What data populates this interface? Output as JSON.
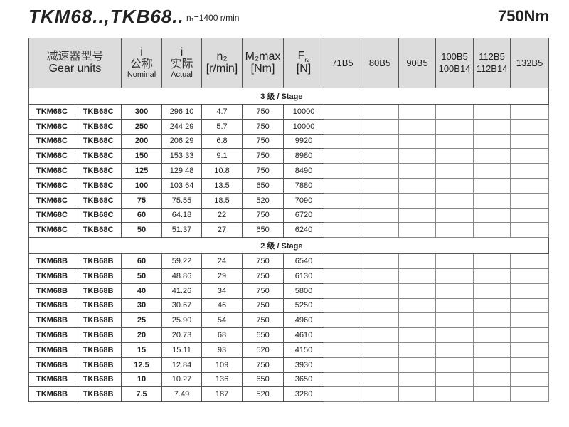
{
  "title": "TKM68..,TKB68..",
  "input_speed": "n₁=1400 r/min",
  "torque": "750Nm",
  "headers": {
    "gear_units_cn": "减速器型号",
    "gear_units_en": "Gear units",
    "nominal_i": "i",
    "nominal_cn": "公称",
    "nominal_en": "Nominal",
    "actual_i": "i",
    "actual_cn": "实际",
    "actual_en": "Actual",
    "n2": "n₂",
    "n2_unit": "[r/min]",
    "m2": "M₂max",
    "m2_unit": "[Nm]",
    "fr2": "F",
    "fr2_sub": "r2",
    "fr2_unit": "[N]",
    "motors": [
      "71B5",
      "80B5",
      "90B5",
      "100B5",
      "112B5",
      "132B5"
    ],
    "motors_line2": [
      "",
      "",
      "",
      "100B14",
      "112B14",
      ""
    ]
  },
  "sections": [
    {
      "label": "3 级 / Stage",
      "rows": [
        [
          "TKM68C",
          "TKB68C",
          "300",
          "296.10",
          "4.7",
          "750",
          "10000"
        ],
        [
          "TKM68C",
          "TKB68C",
          "250",
          "244.29",
          "5.7",
          "750",
          "10000"
        ],
        [
          "TKM68C",
          "TKB68C",
          "200",
          "206.29",
          "6.8",
          "750",
          "9920"
        ],
        [
          "TKM68C",
          "TKB68C",
          "150",
          "153.33",
          "9.1",
          "750",
          "8980"
        ],
        [
          "TKM68C",
          "TKB68C",
          "125",
          "129.48",
          "10.8",
          "750",
          "8490"
        ],
        [
          "TKM68C",
          "TKB68C",
          "100",
          "103.64",
          "13.5",
          "650",
          "7880"
        ],
        [
          "TKM68C",
          "TKB68C",
          "75",
          "75.55",
          "18.5",
          "520",
          "7090"
        ],
        [
          "TKM68C",
          "TKB68C",
          "60",
          "64.18",
          "22",
          "750",
          "6720"
        ],
        [
          "TKM68C",
          "TKB68C",
          "50",
          "51.37",
          "27",
          "650",
          "6240"
        ]
      ]
    },
    {
      "label": "2 级 / Stage",
      "rows": [
        [
          "TKM68B",
          "TKB68B",
          "60",
          "59.22",
          "24",
          "750",
          "6540"
        ],
        [
          "TKM68B",
          "TKB68B",
          "50",
          "48.86",
          "29",
          "750",
          "6130"
        ],
        [
          "TKM68B",
          "TKB68B",
          "40",
          "41.26",
          "34",
          "750",
          "5800"
        ],
        [
          "TKM68B",
          "TKB68B",
          "30",
          "30.67",
          "46",
          "750",
          "5250"
        ],
        [
          "TKM68B",
          "TKB68B",
          "25",
          "25.90",
          "54",
          "750",
          "4960"
        ],
        [
          "TKM68B",
          "TKB68B",
          "20",
          "20.73",
          "68",
          "650",
          "4610"
        ],
        [
          "TKM68B",
          "TKB68B",
          "15",
          "15.11",
          "93",
          "520",
          "4150"
        ],
        [
          "TKM68B",
          "TKB68B",
          "12.5",
          "12.84",
          "109",
          "750",
          "3930"
        ],
        [
          "TKM68B",
          "TKB68B",
          "10",
          "10.27",
          "136",
          "650",
          "3650"
        ],
        [
          "TKM68B",
          "TKB68B",
          "7.5",
          "7.49",
          "187",
          "520",
          "3280"
        ]
      ]
    }
  ]
}
